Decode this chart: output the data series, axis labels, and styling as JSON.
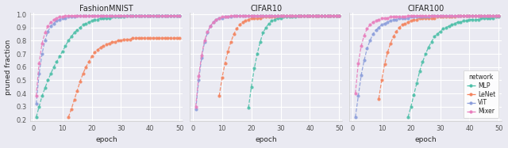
{
  "titles": [
    "FashionMNIST",
    "CIFAR10",
    "CIFAR100"
  ],
  "xlabel": "epoch",
  "ylabel": "pruned fraction",
  "networks": [
    "MLP",
    "LeNet",
    "ViT",
    "Mixer"
  ],
  "colors": {
    "MLP": "#4DBFA8",
    "LeNet": "#F4845F",
    "ViT": "#8C9EDB",
    "Mixer": "#E87EBD"
  },
  "ylim": [
    0.19,
    1.01
  ],
  "xlim": [
    -1,
    51
  ],
  "xticks": [
    0,
    10,
    20,
    30,
    40,
    50
  ],
  "yticks": [
    0.2,
    0.3,
    0.4,
    0.5,
    0.6,
    0.7,
    0.8,
    0.9,
    1.0
  ],
  "bg_color": "#EAEAF2",
  "grid_color": "white",
  "curves": {
    "FashionMNIST": {
      "MLP": {
        "x": [
          1,
          2,
          3,
          4,
          5,
          6,
          7,
          8,
          9,
          10,
          11,
          12,
          13,
          14,
          15,
          16,
          17,
          18,
          19,
          20,
          21,
          22,
          23,
          24,
          25,
          26,
          27,
          28,
          29,
          30,
          31,
          32,
          33,
          34,
          35,
          36,
          37,
          38,
          39,
          40,
          41,
          42,
          43,
          44,
          45,
          46,
          47,
          48,
          49,
          50
        ],
        "y": [
          0.22,
          0.3,
          0.38,
          0.44,
          0.5,
          0.55,
          0.6,
          0.64,
          0.68,
          0.72,
          0.76,
          0.8,
          0.83,
          0.86,
          0.88,
          0.9,
          0.92,
          0.93,
          0.94,
          0.95,
          0.96,
          0.96,
          0.97,
          0.97,
          0.97,
          0.97,
          0.98,
          0.98,
          0.98,
          0.98,
          0.98,
          0.99,
          0.99,
          0.99,
          0.99,
          0.99,
          0.99,
          0.99,
          0.99,
          0.99,
          0.99,
          0.99,
          0.99,
          0.99,
          0.99,
          0.99,
          0.99,
          0.99,
          0.99,
          0.99
        ]
      },
      "LeNet": {
        "x": [
          12,
          13,
          14,
          15,
          16,
          17,
          18,
          19,
          20,
          21,
          22,
          23,
          24,
          25,
          26,
          27,
          28,
          29,
          30,
          31,
          32,
          33,
          34,
          35,
          36,
          37,
          38,
          39,
          40,
          41,
          42,
          43,
          44,
          45,
          46,
          47,
          48,
          49,
          50
        ],
        "y": [
          0.22,
          0.28,
          0.35,
          0.42,
          0.49,
          0.55,
          0.6,
          0.64,
          0.68,
          0.71,
          0.73,
          0.75,
          0.76,
          0.77,
          0.78,
          0.79,
          0.79,
          0.8,
          0.8,
          0.81,
          0.81,
          0.81,
          0.82,
          0.82,
          0.82,
          0.82,
          0.82,
          0.82,
          0.82,
          0.82,
          0.82,
          0.82,
          0.82,
          0.82,
          0.82,
          0.82,
          0.82,
          0.82,
          0.82
        ]
      },
      "ViT": {
        "x": [
          1,
          2,
          3,
          4,
          5,
          6,
          7,
          8,
          9,
          10,
          11,
          12,
          13,
          14,
          15,
          16,
          17,
          18,
          19,
          20,
          21,
          22,
          23,
          24,
          25,
          26,
          27,
          28,
          29,
          30,
          31,
          32,
          33,
          34,
          35,
          36,
          37,
          38,
          39,
          40,
          41,
          42,
          43,
          44,
          45,
          46,
          47,
          48,
          49,
          50
        ],
        "y": [
          0.32,
          0.55,
          0.7,
          0.8,
          0.87,
          0.91,
          0.93,
          0.95,
          0.96,
          0.97,
          0.97,
          0.98,
          0.98,
          0.98,
          0.99,
          0.99,
          0.99,
          0.99,
          0.99,
          0.99,
          0.99,
          0.99,
          0.99,
          0.99,
          0.99,
          0.99,
          0.99,
          0.99,
          0.99,
          0.99,
          0.99,
          0.99,
          0.99,
          0.99,
          0.99,
          0.99,
          0.99,
          0.99,
          0.99,
          0.99,
          0.99,
          0.99,
          0.99,
          0.99,
          0.99,
          0.99,
          0.99,
          0.99,
          0.99,
          0.99
        ]
      },
      "Mixer": {
        "x": [
          1,
          2,
          3,
          4,
          5,
          6,
          7,
          8,
          9,
          10,
          11,
          12,
          13,
          14,
          15,
          16,
          17,
          18,
          19,
          20,
          21,
          22,
          23,
          24,
          25,
          26,
          27,
          28,
          29,
          30,
          31,
          32,
          33,
          34,
          35,
          36,
          37,
          38,
          39,
          40,
          41,
          42,
          43,
          44,
          45,
          46,
          47,
          48,
          49,
          50
        ],
        "y": [
          0.38,
          0.63,
          0.78,
          0.86,
          0.91,
          0.94,
          0.96,
          0.97,
          0.98,
          0.98,
          0.99,
          0.99,
          0.99,
          0.99,
          0.99,
          0.99,
          0.99,
          0.99,
          0.99,
          0.99,
          0.99,
          0.99,
          0.99,
          0.99,
          0.99,
          0.99,
          0.99,
          0.99,
          0.99,
          0.99,
          0.99,
          0.99,
          0.99,
          0.99,
          0.99,
          0.99,
          0.99,
          0.99,
          0.99,
          0.99,
          0.99,
          0.99,
          0.99,
          0.99,
          0.99,
          0.99,
          0.99,
          0.99,
          0.99,
          0.99
        ]
      }
    },
    "CIFAR10": {
      "MLP": {
        "x": [
          19,
          20,
          21,
          22,
          23,
          24,
          25,
          26,
          27,
          28,
          29,
          30,
          31,
          32,
          33,
          34,
          35,
          36,
          37,
          38,
          39,
          40,
          41,
          42,
          43,
          44,
          45,
          46,
          47,
          48,
          49,
          50
        ],
        "y": [
          0.29,
          0.45,
          0.59,
          0.7,
          0.79,
          0.86,
          0.9,
          0.93,
          0.95,
          0.96,
          0.97,
          0.97,
          0.98,
          0.98,
          0.98,
          0.98,
          0.98,
          0.99,
          0.99,
          0.99,
          0.99,
          0.99,
          0.99,
          0.99,
          0.99,
          0.99,
          0.99,
          0.99,
          0.99,
          0.99,
          0.99,
          0.99
        ]
      },
      "LeNet": {
        "x": [
          9,
          10,
          11,
          12,
          13,
          14,
          15,
          16,
          17,
          18,
          19,
          20,
          21,
          22,
          23,
          24,
          25,
          26,
          27,
          28,
          29,
          30,
          31,
          32,
          33,
          34,
          35,
          36,
          37,
          38,
          39,
          40,
          41,
          42,
          43,
          44,
          45,
          46,
          47,
          48,
          49,
          50
        ],
        "y": [
          0.38,
          0.52,
          0.63,
          0.72,
          0.79,
          0.85,
          0.89,
          0.92,
          0.94,
          0.95,
          0.96,
          0.97,
          0.97,
          0.97,
          0.97,
          0.98,
          0.98,
          0.98,
          0.98,
          0.98,
          0.99,
          0.99,
          0.99,
          0.99,
          0.99,
          0.99,
          0.99,
          0.99,
          0.99,
          0.99,
          0.99,
          0.99,
          0.99,
          0.99,
          0.99,
          0.99,
          0.99,
          0.99,
          0.99,
          0.99,
          0.99,
          0.99
        ]
      },
      "ViT": {
        "x": [
          1,
          2,
          3,
          4,
          5,
          6,
          7,
          8,
          9,
          10,
          11,
          12,
          13,
          14,
          15,
          16,
          17,
          18,
          19,
          20,
          21,
          22,
          23,
          24,
          25,
          26,
          27,
          28,
          29,
          30,
          31,
          32,
          33,
          34,
          35,
          36,
          37,
          38,
          39,
          40,
          41,
          42,
          43,
          44,
          45,
          46,
          47,
          48,
          49,
          50
        ],
        "y": [
          0.28,
          0.5,
          0.67,
          0.79,
          0.86,
          0.91,
          0.94,
          0.96,
          0.97,
          0.97,
          0.98,
          0.98,
          0.98,
          0.99,
          0.99,
          0.99,
          0.99,
          0.99,
          0.99,
          0.99,
          0.99,
          0.99,
          0.99,
          0.99,
          0.99,
          0.99,
          0.99,
          0.99,
          0.99,
          0.99,
          0.99,
          0.99,
          0.99,
          0.99,
          0.99,
          0.99,
          0.99,
          0.99,
          0.99,
          0.99,
          0.99,
          0.99,
          0.99,
          0.99,
          0.99,
          0.99,
          0.99,
          0.99,
          0.99,
          0.99
        ]
      },
      "Mixer": {
        "x": [
          1,
          2,
          3,
          4,
          5,
          6,
          7,
          8,
          9,
          10,
          11,
          12,
          13,
          14,
          15,
          16,
          17,
          18,
          19,
          20,
          21,
          22,
          23,
          24,
          25,
          26,
          27,
          28,
          29,
          30,
          31,
          32,
          33,
          34,
          35,
          36,
          37,
          38,
          39,
          40,
          41,
          42,
          43,
          44,
          45,
          46,
          47,
          48,
          49,
          50
        ],
        "y": [
          0.3,
          0.53,
          0.69,
          0.8,
          0.87,
          0.91,
          0.94,
          0.96,
          0.97,
          0.98,
          0.98,
          0.98,
          0.99,
          0.99,
          0.99,
          0.99,
          0.99,
          0.99,
          0.99,
          0.99,
          0.99,
          0.99,
          0.99,
          0.99,
          0.99,
          0.99,
          0.99,
          0.99,
          0.99,
          0.99,
          0.99,
          0.99,
          0.99,
          0.99,
          0.99,
          0.99,
          0.99,
          0.99,
          0.99,
          0.99,
          0.99,
          0.99,
          0.99,
          0.99,
          0.99,
          0.99,
          0.99,
          0.99,
          0.99,
          0.99
        ]
      }
    },
    "CIFAR100": {
      "MLP": {
        "x": [
          19,
          20,
          21,
          22,
          23,
          24,
          25,
          26,
          27,
          28,
          29,
          30,
          31,
          32,
          33,
          34,
          35,
          36,
          37,
          38,
          39,
          40,
          41,
          42,
          43,
          44,
          45,
          46,
          47,
          48,
          49,
          50
        ],
        "y": [
          0.22,
          0.3,
          0.39,
          0.48,
          0.57,
          0.64,
          0.7,
          0.75,
          0.79,
          0.83,
          0.85,
          0.87,
          0.89,
          0.9,
          0.91,
          0.92,
          0.93,
          0.94,
          0.94,
          0.95,
          0.95,
          0.96,
          0.96,
          0.96,
          0.96,
          0.97,
          0.97,
          0.97,
          0.97,
          0.97,
          0.98,
          0.98
        ]
      },
      "LeNet": {
        "x": [
          9,
          10,
          11,
          12,
          13,
          14,
          15,
          16,
          17,
          18,
          19,
          20,
          21,
          22,
          23,
          24,
          25,
          26,
          27,
          28,
          29,
          30,
          31,
          32,
          33,
          34,
          35,
          36,
          37,
          38,
          39,
          40,
          41,
          42,
          43,
          44,
          45,
          46,
          47,
          48,
          49,
          50
        ],
        "y": [
          0.36,
          0.5,
          0.62,
          0.71,
          0.78,
          0.83,
          0.87,
          0.9,
          0.92,
          0.93,
          0.94,
          0.95,
          0.96,
          0.96,
          0.97,
          0.97,
          0.97,
          0.97,
          0.97,
          0.97,
          0.98,
          0.98,
          0.98,
          0.98,
          0.98,
          0.98,
          0.98,
          0.99,
          0.99,
          0.99,
          0.99,
          0.99,
          0.99,
          0.99,
          0.99,
          0.99,
          0.99,
          0.99,
          0.99,
          0.99,
          0.99,
          0.99
        ]
      },
      "ViT": {
        "x": [
          1,
          2,
          3,
          4,
          5,
          6,
          7,
          8,
          9,
          10,
          11,
          12,
          13,
          14,
          15,
          16,
          17,
          18,
          19,
          20,
          21,
          22,
          23,
          24,
          25,
          26,
          27,
          28,
          29,
          30,
          31,
          32,
          33,
          34,
          35,
          36,
          37,
          38,
          39,
          40,
          41,
          42,
          43,
          44,
          45,
          46,
          47,
          48,
          49,
          50
        ],
        "y": [
          0.22,
          0.38,
          0.54,
          0.65,
          0.74,
          0.8,
          0.85,
          0.88,
          0.9,
          0.92,
          0.93,
          0.94,
          0.95,
          0.96,
          0.96,
          0.97,
          0.97,
          0.97,
          0.97,
          0.98,
          0.98,
          0.98,
          0.98,
          0.98,
          0.98,
          0.98,
          0.99,
          0.99,
          0.99,
          0.99,
          0.99,
          0.99,
          0.99,
          0.99,
          0.99,
          0.99,
          0.99,
          0.99,
          0.99,
          0.99,
          0.99,
          0.99,
          0.99,
          0.99,
          0.99,
          0.99,
          0.99,
          0.99,
          0.99,
          0.99
        ]
      },
      "Mixer": {
        "x": [
          1,
          2,
          3,
          4,
          5,
          6,
          7,
          8,
          9,
          10,
          11,
          12,
          13,
          14,
          15,
          16,
          17,
          18,
          19,
          20,
          21,
          22,
          23,
          24,
          25,
          26,
          27,
          28,
          29,
          30,
          31,
          32,
          33,
          34,
          35,
          36,
          37,
          38,
          39,
          40,
          41,
          42,
          43,
          44,
          45,
          46,
          47,
          48,
          49,
          50
        ],
        "y": [
          0.4,
          0.63,
          0.76,
          0.84,
          0.89,
          0.92,
          0.94,
          0.95,
          0.96,
          0.97,
          0.97,
          0.97,
          0.98,
          0.98,
          0.98,
          0.98,
          0.98,
          0.98,
          0.99,
          0.99,
          0.99,
          0.99,
          0.99,
          0.99,
          0.99,
          0.99,
          0.99,
          0.99,
          0.99,
          0.99,
          0.99,
          0.99,
          0.99,
          0.99,
          0.99,
          0.99,
          0.99,
          0.99,
          0.99,
          0.99,
          0.99,
          0.99,
          0.99,
          0.99,
          0.99,
          0.99,
          0.99,
          0.99,
          0.99,
          0.99
        ]
      }
    }
  }
}
